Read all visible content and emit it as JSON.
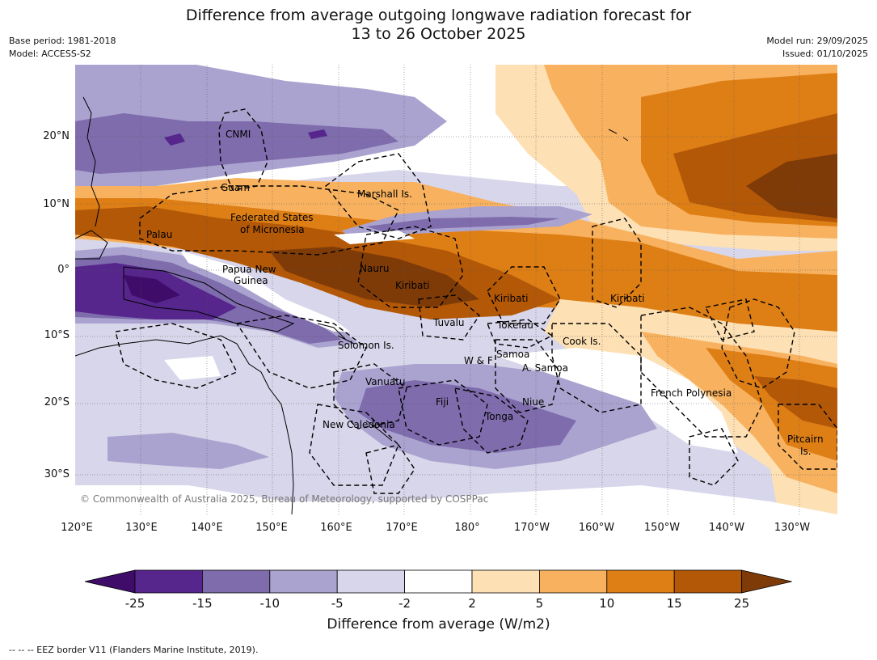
{
  "title": {
    "line1": "Difference from average outgoing longwave radiation forecast for",
    "line2": "13 to 26 October 2025"
  },
  "meta_left": {
    "base_period": "Base period: 1981-2018",
    "model": "Model: ACCESS-S2"
  },
  "meta_right": {
    "model_run": "Model run: 29/09/2025",
    "issued": "Issued: 01/10/2025"
  },
  "map": {
    "lat_labels": [
      "20°N",
      "10°N",
      "0°",
      "10°S",
      "20°S",
      "30°S"
    ],
    "lon_labels": [
      "120°E",
      "130°E",
      "140°E",
      "150°E",
      "160°E",
      "170°E",
      "180°",
      "170°W",
      "160°W",
      "150°W",
      "140°W",
      "130°W"
    ],
    "region_labels": {
      "cnmi": "CNMI",
      "guam": "Guam",
      "marshall": "Marshall Is.",
      "fsm1": "Federated States",
      "fsm2": "of Micronesia",
      "palau": "Palau",
      "png1": "Papua New",
      "png2": "Guinea",
      "nauru": "Nauru",
      "kiribati_w": "Kiribati",
      "kiribati_c": "Kiribati",
      "kiribati_e": "Kiribati",
      "tuvalu": "Tuvalu",
      "tokelau": "Tokelau",
      "cook": "Cook Is.",
      "solomon": "Solomon Is.",
      "samoa": "Samoa",
      "wf": "W & F",
      "asamoa": "A. Samoa",
      "vanuatu": "Vanuatu",
      "fiji": "Fiji",
      "niue": "Niue",
      "tonga": "Tonga",
      "newcal": "New Caledonia",
      "frpoly": "French Polynesia",
      "pitcairn1": "Pitcairn",
      "pitcairn2": "Is."
    },
    "copyright": "© Commonwealth of Australia 2025, Bureau of Meteorology, supported by COSPPac"
  },
  "colorbar": {
    "ticks": [
      "-25",
      "-15",
      "-10",
      "-5",
      "-2",
      "2",
      "5",
      "10",
      "15",
      "25"
    ],
    "colors": [
      "#3f0c6a",
      "#56268c",
      "#7e6cad",
      "#aba3cf",
      "#d8d6ea",
      "#ffffff",
      "#fde0b4",
      "#f8b25f",
      "#de7f16",
      "#b35807",
      "#7e3b08"
    ],
    "label": "Difference from average (W/m2)"
  },
  "footer": "--  --  -- EEZ border V11 (Flanders Marine Institute, 2019)."
}
